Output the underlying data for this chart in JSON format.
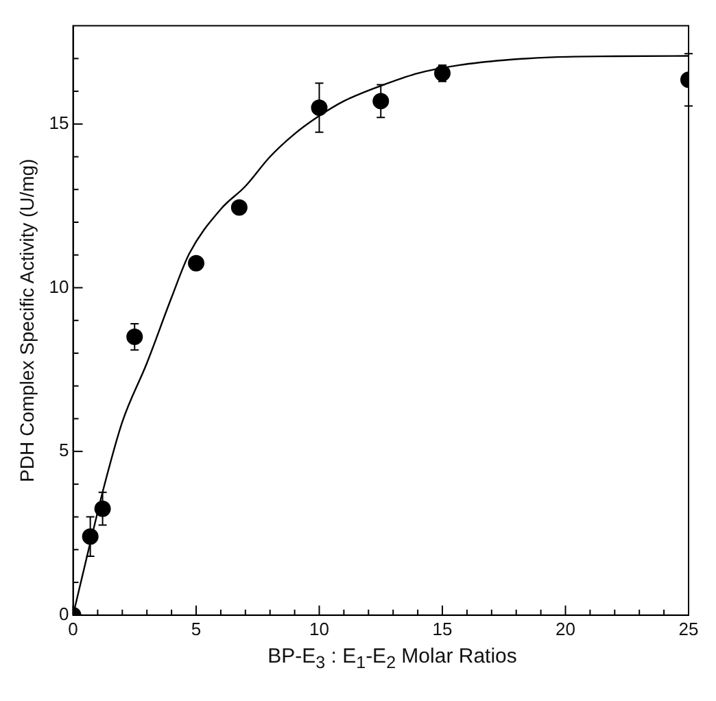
{
  "chart_data": {
    "type": "scatter",
    "xlabel": "BP-E$_{3}$ : E$_{1}$-E$_{2}$ Molar Ratios",
    "ylabel": "PDH Complex Specific Activity (U/mg)",
    "xlim": [
      0,
      25
    ],
    "ylim": [
      0,
      18
    ],
    "xticks": [
      0,
      {
        "value": 1,
        "label": null
      },
      {
        "value": 2,
        "label": null
      },
      {
        "value": 3,
        "label": null
      },
      {
        "value": 4,
        "label": null
      },
      5,
      {
        "value": 6,
        "label": null
      },
      {
        "value": 7,
        "label": null
      },
      {
        "value": 8,
        "label": null
      },
      {
        "value": 9,
        "label": null
      },
      10,
      {
        "value": 11,
        "label": null
      },
      {
        "value": 12,
        "label": null
      },
      {
        "value": 13,
        "label": null
      },
      {
        "value": 14,
        "label": null
      },
      15,
      {
        "value": 16,
        "label": null
      },
      {
        "value": 17,
        "label": null
      },
      {
        "value": 18,
        "label": null
      },
      {
        "value": 19,
        "label": null
      },
      20,
      {
        "value": 21,
        "label": null
      },
      {
        "value": 22,
        "label": null
      },
      {
        "value": 23,
        "label": null
      },
      {
        "value": 24,
        "label": null
      },
      25
    ],
    "yticks": [
      0,
      {
        "value": 1,
        "label": null
      },
      {
        "value": 2,
        "label": null
      },
      {
        "value": 3,
        "label": null
      },
      {
        "value": 4,
        "label": null
      },
      5,
      {
        "value": 6,
        "label": null
      },
      {
        "value": 7,
        "label": null
      },
      {
        "value": 8,
        "label": null
      },
      {
        "value": 9,
        "label": null
      },
      10,
      {
        "value": 11,
        "label": null
      },
      {
        "value": 12,
        "label": null
      },
      {
        "value": 13,
        "label": null
      },
      {
        "value": 14,
        "label": null
      },
      15,
      {
        "value": 16,
        "label": null
      },
      {
        "value": 17,
        "label": null
      }
    ],
    "grid": false,
    "legend": false,
    "marker": "circle",
    "series": [
      {
        "type": "scatter",
        "color": "#000000",
        "x": [
          0,
          0.7,
          1.2,
          2.5,
          5,
          6.75,
          10,
          12.5,
          15,
          25
        ],
        "values": [
          0,
          2.4,
          3.25,
          8.5,
          10.75,
          12.45,
          15.5,
          15.7,
          16.55,
          16.35
        ],
        "errors": [
          null,
          0.6,
          0.5,
          0.4,
          null,
          null,
          0.75,
          0.5,
          0.25,
          0.8
        ]
      },
      {
        "type": "line",
        "color": "#000000",
        "marker": "none",
        "line_style": "solid",
        "x": [
          0,
          0.6,
          1.27,
          2,
          3,
          4,
          4.72,
          6,
          7,
          8,
          9,
          9.9,
          11,
          12.8,
          14,
          15.7,
          17.5,
          19.5,
          22,
          25
        ],
        "values": [
          0,
          1.9,
          3.96,
          5.9,
          7.7,
          9.7,
          11.04,
          12.4,
          13.1,
          14.0,
          14.7,
          15.2,
          15.7,
          16.25,
          16.55,
          16.8,
          16.95,
          17.04,
          17.07,
          17.08
        ]
      }
    ]
  }
}
